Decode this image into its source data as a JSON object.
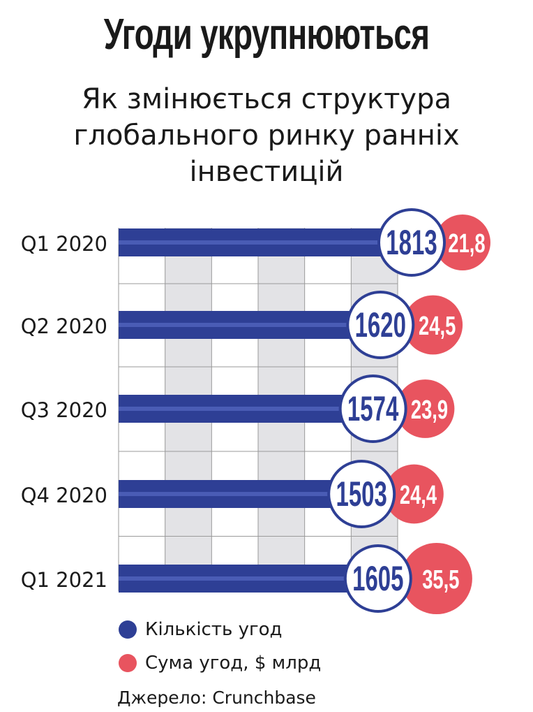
{
  "header": {
    "title": "Угоди укрупнюються",
    "subtitle_lines": [
      "Як змінюється структура",
      "глобального ринку ранніх",
      "інвестицій"
    ]
  },
  "legend": {
    "count_label": "Кількість угод",
    "amount_label": "Сума угод, $ млрд"
  },
  "source": "Джерело: Crunchbase",
  "colors": {
    "bar": "#2e3f95",
    "bar_stripe": "#4a5cb5",
    "amount": "#e8545f",
    "grid_stripe": "#e3e3e6",
    "grid_line": "#9a9a9a"
  },
  "chart_data": {
    "type": "bar",
    "orientation": "horizontal",
    "categories": [
      "Q1 2020",
      "Q2 2020",
      "Q3 2020",
      "Q4 2020",
      "Q1 2021"
    ],
    "series": [
      {
        "name": "Кількість угод",
        "values": [
          1813,
          1620,
          1574,
          1503,
          1605
        ],
        "labels": [
          "1813",
          "1620",
          "1574",
          "1503",
          "1605"
        ]
      },
      {
        "name": "Сума угод, $ млрд",
        "values": [
          21.8,
          24.5,
          23.9,
          24.4,
          35.5
        ],
        "labels": [
          "21,8",
          "24,5",
          "23,9",
          "24,4",
          "35,5"
        ]
      }
    ],
    "xlim": [
      0,
      1813
    ]
  }
}
